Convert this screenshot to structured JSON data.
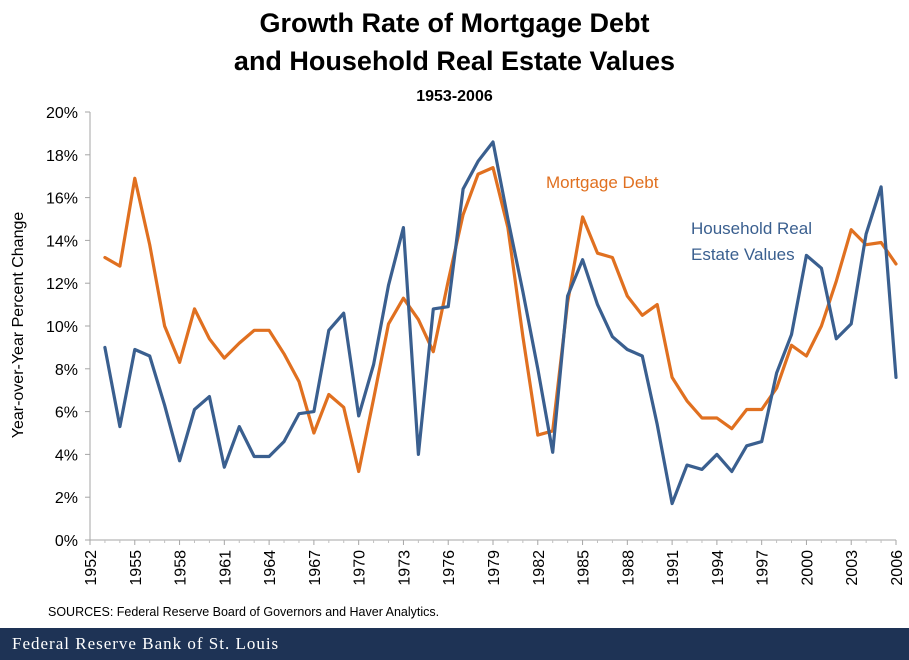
{
  "title_line1": "Growth Rate of Mortgage Debt",
  "title_line2": "and Household Real Estate Values",
  "subtitle": "1953-2006",
  "source": "SOURCES: Federal Reserve Board of Governors and Haver Analytics.",
  "footer": "Federal Reserve Bank of St. Louis",
  "chart_data": {
    "type": "line",
    "title": "Growth Rate of Mortgage Debt and Household Real Estate Values",
    "subtitle": "1953-2006",
    "xlabel": "",
    "ylabel": "Year-over-Year  Percent Change",
    "xlim": [
      1952,
      2006
    ],
    "ylim": [
      0,
      20
    ],
    "x_ticks": [
      "1952",
      "1955",
      "1958",
      "1961",
      "1964",
      "1967",
      "1970",
      "1973",
      "1976",
      "1979",
      "1982",
      "1985",
      "1988",
      "1991",
      "1994",
      "1997",
      "2000",
      "2003",
      "2006"
    ],
    "y_ticks": [
      "0%",
      "2%",
      "4%",
      "6%",
      "8%",
      "10%",
      "12%",
      "14%",
      "16%",
      "18%",
      "20%"
    ],
    "grid": false,
    "series": [
      {
        "name": "Mortgage Debt",
        "color": "#e07020",
        "x": [
          1953,
          1954,
          1955,
          1956,
          1957,
          1958,
          1959,
          1960,
          1961,
          1962,
          1963,
          1964,
          1965,
          1966,
          1967,
          1968,
          1969,
          1970,
          1971,
          1972,
          1973,
          1974,
          1975,
          1976,
          1977,
          1978,
          1979,
          1980,
          1981,
          1982,
          1983,
          1984,
          1985,
          1986,
          1987,
          1988,
          1989,
          1990,
          1991,
          1992,
          1993,
          1994,
          1995,
          1996,
          1997,
          1998,
          1999,
          2000,
          2001,
          2002,
          2003,
          2004,
          2005,
          2006
        ],
        "values": [
          13.2,
          12.8,
          16.9,
          13.8,
          10.0,
          8.3,
          10.8,
          9.4,
          8.5,
          9.2,
          9.8,
          9.8,
          8.7,
          7.4,
          5.0,
          6.8,
          6.2,
          3.2,
          6.6,
          10.1,
          11.3,
          10.3,
          8.8,
          12.1,
          15.2,
          17.1,
          17.4,
          14.6,
          9.5,
          4.9,
          5.1,
          11.1,
          15.1,
          13.4,
          13.2,
          11.4,
          10.5,
          11.0,
          7.6,
          6.5,
          5.7,
          5.7,
          5.2,
          6.1,
          6.1,
          7.1,
          9.1,
          8.6,
          10.0,
          12.1,
          14.5,
          13.8,
          13.9,
          12.9
        ]
      },
      {
        "name": "Household Real Estate Values",
        "color": "#3a5f8f",
        "x": [
          1953,
          1954,
          1955,
          1956,
          1957,
          1958,
          1959,
          1960,
          1961,
          1962,
          1963,
          1964,
          1965,
          1966,
          1967,
          1968,
          1969,
          1970,
          1971,
          1972,
          1973,
          1974,
          1975,
          1976,
          1977,
          1978,
          1979,
          1980,
          1981,
          1982,
          1983,
          1984,
          1985,
          1986,
          1987,
          1988,
          1989,
          1990,
          1991,
          1992,
          1993,
          1994,
          1995,
          1996,
          1997,
          1998,
          1999,
          2000,
          2001,
          2002,
          2003,
          2004,
          2005,
          2006
        ],
        "values": [
          9.0,
          5.3,
          8.9,
          8.6,
          6.3,
          3.7,
          6.1,
          6.7,
          3.4,
          5.3,
          3.9,
          3.9,
          4.6,
          5.9,
          6.0,
          9.8,
          10.6,
          5.8,
          8.2,
          11.9,
          14.6,
          4.0,
          10.8,
          10.9,
          16.4,
          17.7,
          18.6,
          15.0,
          11.6,
          8.0,
          4.1,
          11.4,
          13.1,
          11.0,
          9.5,
          8.9,
          8.6,
          5.4,
          1.7,
          3.5,
          3.3,
          4.0,
          3.2,
          4.4,
          4.6,
          7.8,
          9.6,
          13.3,
          12.7,
          9.4,
          10.1,
          14.3,
          16.5,
          7.6
        ]
      }
    ],
    "annotations": [
      {
        "text": "Mortgage Debt",
        "series": "Mortgage Debt"
      },
      {
        "text_line1": "Household Real",
        "text_line2": "Estate Values",
        "series": "Household Real Estate Values"
      }
    ]
  }
}
